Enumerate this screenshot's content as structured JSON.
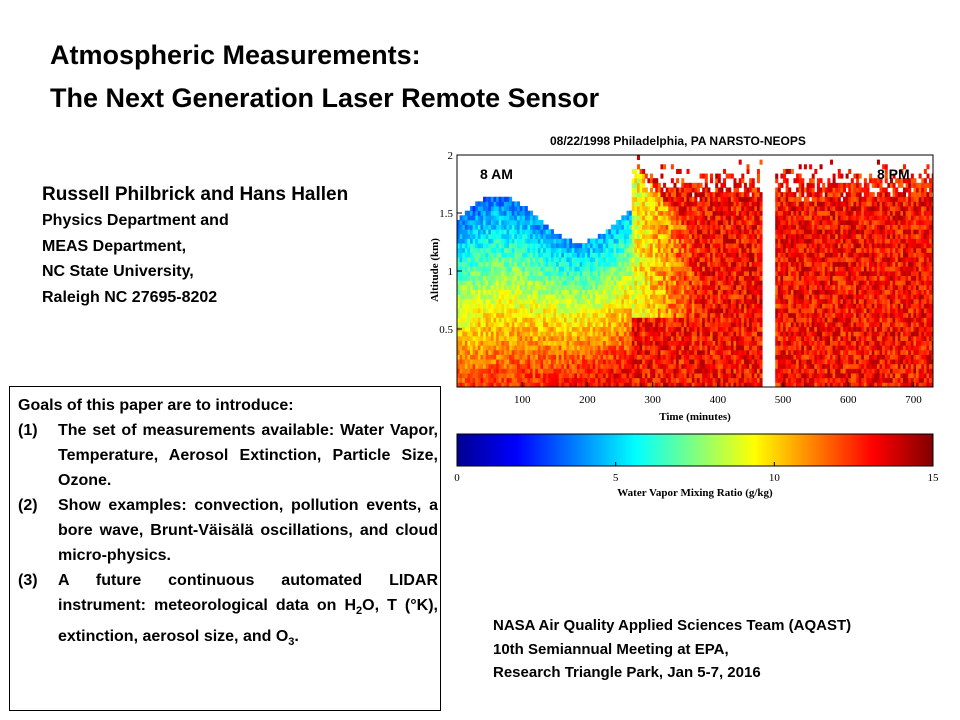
{
  "slide": {
    "title_line1": "Atmospheric Measurements:",
    "title_line2": "The Next Generation Laser Remote Sensor"
  },
  "authors": {
    "names": "Russell Philbrick and Hans Hallen",
    "affil1": "Physics Department and",
    "affil2": "MEAS Department,",
    "affil3": "NC State University,",
    "address": "Raleigh NC 27695-8202"
  },
  "goals": {
    "heading": "Goals of this paper are to introduce:",
    "items": [
      {
        "num": "(1)",
        "text": "The set of measurements available: Water Vapor, Temperature, Aerosol Extinction, Particle Size, Ozone."
      },
      {
        "num": "(2)",
        "text": "Show examples: convection, pollution events, a bore wave, Brunt-Väisälä oscillations, and cloud micro-physics."
      },
      {
        "num": "(3)",
        "text_a": "A future continuous automated LIDAR instrument: meteorological data on H",
        "sub1": "2",
        "text_b": "O, T (",
        "degree": "°",
        "text_c": "K), extinction, aerosol size, and O",
        "sub2": "3",
        "text_d": "."
      }
    ]
  },
  "meeting": {
    "line1": "NASA Air Quality Applied Sciences Team (AQAST)",
    "line2": "10th Semiannual Meeting at EPA,",
    "line3": "Research Triangle Park, Jan 5-7, 2016"
  },
  "chart_data": {
    "type": "heatmap",
    "title": "08/22/1998 Philadelphia, PA NARSTO-NEOPS",
    "xlabel": "Time (minutes)",
    "ylabel": "Altitude (km)",
    "xlim": [
      0,
      730
    ],
    "ylim": [
      0,
      2
    ],
    "x_ticks": [
      "100",
      "200",
      "300",
      "400",
      "500",
      "600",
      "700"
    ],
    "y_ticks": [
      "0.5",
      "1",
      "1.5",
      "2"
    ],
    "annotations": [
      "8 AM",
      "8 PM"
    ],
    "data_gap_minutes": [
      470,
      485
    ],
    "colorbar": {
      "label": "Water Vapor Mixing Ratio (g/kg)",
      "range": [
        0,
        15
      ],
      "ticks": [
        "0",
        "5",
        "10",
        "15"
      ],
      "stops": [
        "#00008f",
        "#0000ff",
        "#0080ff",
        "#00ffff",
        "#80ff80",
        "#ffff00",
        "#ff8000",
        "#ff0000",
        "#800000"
      ]
    },
    "description_values": {
      "morning_low_level_g_per_kg": 9,
      "morning_upper_level_g_per_kg": 3,
      "afternoon_mixed_layer_g_per_kg": 13
    }
  }
}
